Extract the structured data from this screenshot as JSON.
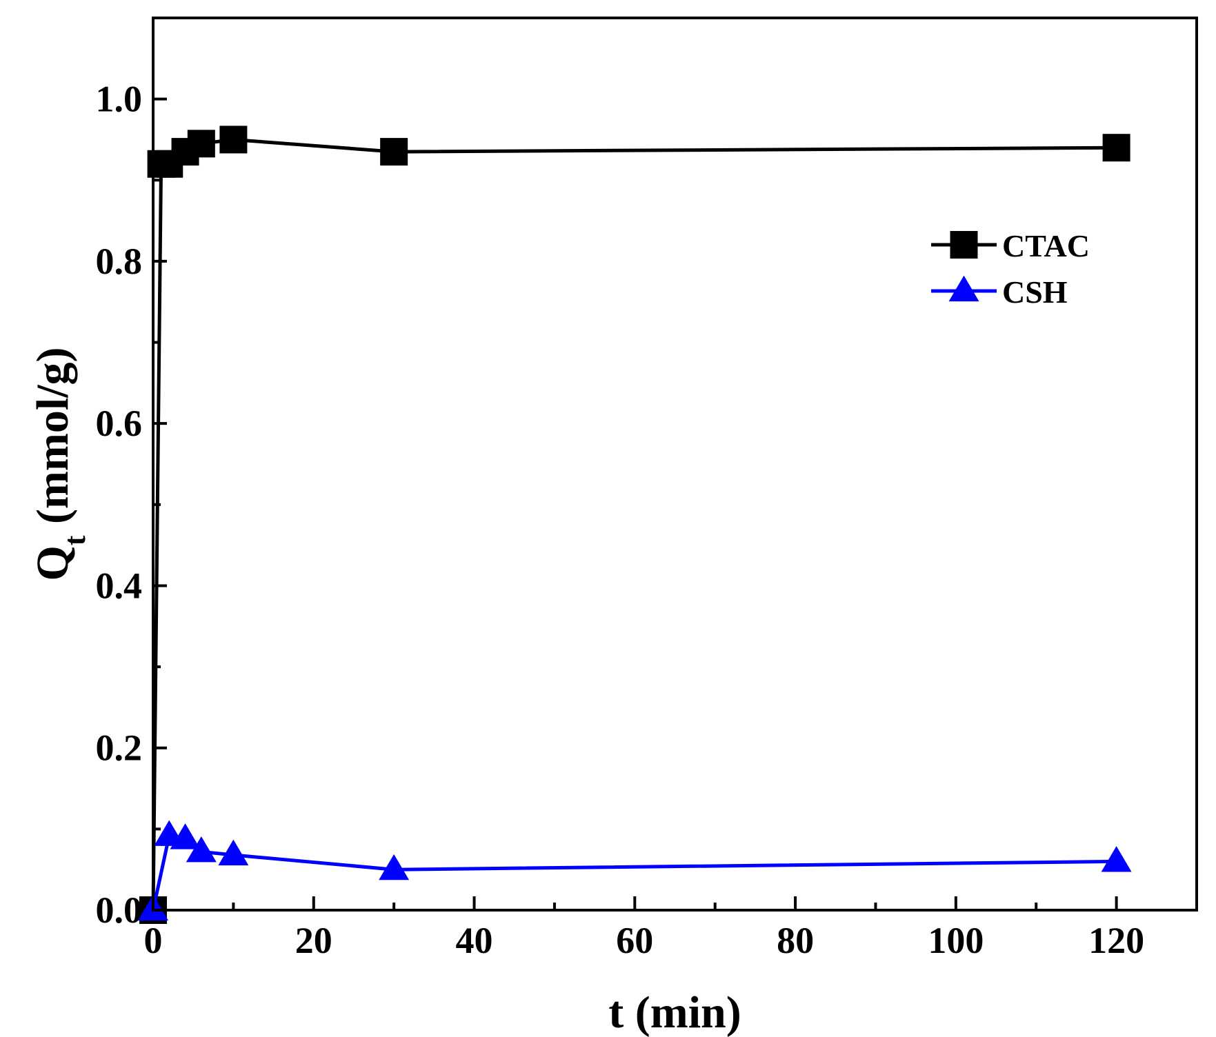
{
  "chart_data": {
    "type": "line",
    "xlabel": "t (min)",
    "ylabel_main": "Q",
    "ylabel_sub": "t",
    "ylabel_unit": " (mmol/g)",
    "xlim": [
      0,
      130
    ],
    "ylim": [
      0,
      1.1
    ],
    "xticks": [
      0,
      20,
      40,
      60,
      80,
      100,
      120
    ],
    "xtick_labels": [
      "0",
      "20",
      "40",
      "60",
      "80",
      "100",
      "120"
    ],
    "yticks": [
      0,
      0.2,
      0.4,
      0.6,
      0.8,
      1.0
    ],
    "ytick_labels": [
      "0.0",
      "0.2",
      "0.4",
      "0.6",
      "0.8",
      "1.0"
    ],
    "x_minor_step": 10,
    "y_minor_step": 0.1,
    "grid": false,
    "legend_position": "top-right",
    "series": [
      {
        "name": "CTAC",
        "color": "#000000",
        "marker": "square",
        "x": [
          0,
          1,
          2,
          4,
          6,
          10,
          30,
          120
        ],
        "y": [
          0,
          0.92,
          0.92,
          0.935,
          0.945,
          0.95,
          0.935,
          0.94
        ]
      },
      {
        "name": "CSH",
        "color": "#0000ff",
        "marker": "triangle",
        "x": [
          0,
          2,
          4,
          6,
          10,
          30,
          120
        ],
        "y": [
          0,
          0.092,
          0.088,
          0.072,
          0.068,
          0.05,
          0.06
        ]
      }
    ]
  }
}
